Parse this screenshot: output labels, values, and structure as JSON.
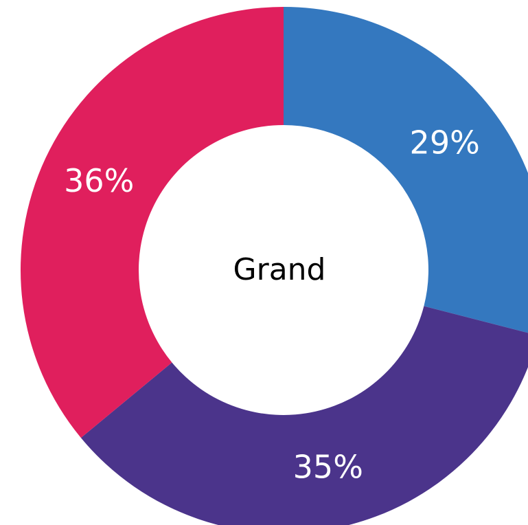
{
  "chart_data": {
    "type": "donut",
    "center_label": "Grand",
    "values": [
      29,
      35,
      36
    ],
    "value_labels": [
      "29%",
      "35%",
      "36%"
    ],
    "colors": [
      "#3478bf",
      "#4b348b",
      "#e01f5d"
    ]
  }
}
